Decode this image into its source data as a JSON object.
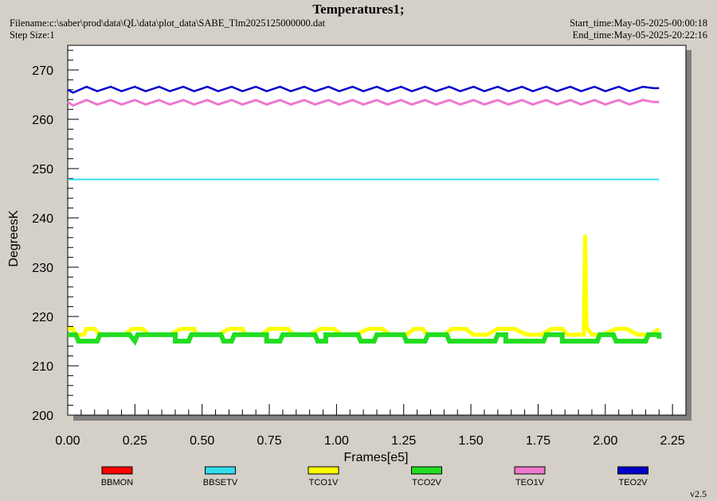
{
  "header": {
    "title": "Temperatures1;",
    "filename": "Filename:c:\\saber\\prod\\data\\QL\\data\\plot_data\\SABE_Tlm2025125000000.dat",
    "step_size": "Step Size:1",
    "start_time": "Start_time:May-05-2025-00:00:18",
    "end_time": "End_time:May-05-2025-20:22:16"
  },
  "version": "v2.5",
  "chart_data": {
    "type": "line",
    "title": "Temperatures1;",
    "xlabel": "Frames[e5]",
    "ylabel": "DegreesK",
    "xlim": [
      0,
      2.3
    ],
    "ylim": [
      200,
      275
    ],
    "x_ticks": [
      "0.00",
      "0.25",
      "0.50",
      "0.75",
      "1.00",
      "1.25",
      "1.50",
      "1.75",
      "2.00",
      "2.25"
    ],
    "y_ticks": [
      "200",
      "210",
      "220",
      "230",
      "240",
      "250",
      "260",
      "270"
    ],
    "grid": false,
    "legend_position": "bottom",
    "series": [
      {
        "name": "BBMON",
        "color": "#ff0000",
        "x": [],
        "y": []
      },
      {
        "name": "BBSETV",
        "color": "#33ddee",
        "x": [
          0,
          0.25,
          0.5,
          0.75,
          1.0,
          1.25,
          1.5,
          1.75,
          2.0,
          2.2
        ],
        "y": [
          247.8,
          247.8,
          247.8,
          247.8,
          247.8,
          247.8,
          247.8,
          247.8,
          247.8,
          247.8
        ]
      },
      {
        "name": "TCO1V",
        "color": "#ffff00",
        "x": [
          0,
          0.02,
          0.03,
          0.06,
          0.07,
          0.1,
          0.12,
          0.21,
          0.24,
          0.28,
          0.3,
          0.38,
          0.42,
          0.47,
          0.48,
          0.56,
          0.6,
          0.65,
          0.66,
          0.72,
          0.75,
          0.82,
          0.84,
          0.9,
          0.94,
          0.99,
          1.02,
          1.07,
          1.12,
          1.17,
          1.2,
          1.26,
          1.29,
          1.32,
          1.34,
          1.4,
          1.43,
          1.48,
          1.51,
          1.56,
          1.6,
          1.66,
          1.71,
          1.76,
          1.8,
          1.84,
          1.86,
          1.92,
          1.925,
          1.93,
          1.935,
          1.95,
          1.99,
          2.04,
          2.08,
          2.12,
          2.17,
          2.2
        ],
        "y": [
          217.5,
          217.5,
          216.3,
          216.3,
          217.5,
          217.5,
          216.3,
          216.3,
          217.5,
          217.5,
          216.3,
          216.3,
          217.5,
          217.5,
          216.3,
          216.3,
          217.5,
          217.5,
          216.3,
          216.3,
          217.5,
          217.5,
          216.3,
          216.3,
          217.5,
          217.5,
          216.3,
          216.3,
          217.5,
          217.5,
          216.3,
          216.3,
          217.5,
          217.5,
          216.3,
          216.3,
          217.5,
          217.5,
          216.3,
          216.3,
          217.5,
          217.5,
          216.3,
          216.3,
          217.5,
          217.5,
          216.3,
          216.3,
          236.5,
          218.0,
          217.5,
          216.3,
          216.3,
          217.5,
          217.5,
          216.3,
          216.3,
          217.5
        ]
      },
      {
        "name": "TCO2V",
        "color": "#22dd22",
        "x": [
          0,
          0.03,
          0.04,
          0.11,
          0.12,
          0.23,
          0.25,
          0.26,
          0.4,
          0.4,
          0.45,
          0.46,
          0.57,
          0.58,
          0.61,
          0.62,
          0.74,
          0.74,
          0.79,
          0.8,
          0.92,
          0.93,
          0.96,
          0.96,
          1.08,
          1.09,
          1.14,
          1.15,
          1.25,
          1.26,
          1.33,
          1.34,
          1.41,
          1.42,
          1.59,
          1.6,
          1.63,
          1.63,
          1.77,
          1.78,
          1.84,
          1.84,
          1.97,
          1.98,
          2.03,
          2.04,
          2.15,
          2.16,
          2.2,
          2.2
        ],
        "y": [
          216.3,
          216.3,
          215.0,
          215.0,
          216.3,
          216.3,
          215.0,
          216.3,
          216.3,
          215.0,
          215.0,
          216.3,
          216.3,
          215.0,
          215.0,
          216.3,
          216.3,
          215.0,
          215.0,
          216.3,
          216.3,
          215.0,
          215.0,
          216.3,
          216.3,
          215.0,
          215.0,
          216.3,
          216.3,
          215.0,
          215.0,
          216.3,
          216.3,
          215.0,
          215.0,
          216.3,
          216.3,
          215.0,
          215.0,
          216.3,
          216.3,
          215.0,
          215.0,
          216.3,
          216.3,
          215.0,
          215.0,
          216.3,
          216.3,
          215.5
        ]
      },
      {
        "name": "TEO1V",
        "color": "#ee77cc",
        "x": [
          0,
          0.02,
          0.07,
          0.11,
          0.16,
          0.2,
          0.25,
          0.29,
          0.34,
          0.38,
          0.43,
          0.47,
          0.52,
          0.56,
          0.61,
          0.65,
          0.7,
          0.74,
          0.79,
          0.83,
          0.88,
          0.92,
          0.97,
          1.01,
          1.06,
          1.1,
          1.15,
          1.19,
          1.24,
          1.28,
          1.33,
          1.37,
          1.42,
          1.46,
          1.51,
          1.55,
          1.6,
          1.64,
          1.69,
          1.73,
          1.78,
          1.82,
          1.87,
          1.91,
          1.96,
          2.0,
          2.05,
          2.09,
          2.14,
          2.18,
          2.2
        ],
        "y": [
          263.5,
          262.8,
          263.9,
          263.0,
          263.9,
          263.0,
          263.9,
          263.0,
          263.9,
          263.0,
          263.9,
          263.0,
          263.9,
          263.0,
          263.9,
          263.0,
          263.9,
          263.0,
          263.9,
          263.0,
          263.9,
          263.0,
          263.9,
          263.0,
          263.9,
          263.0,
          263.9,
          263.0,
          263.9,
          263.0,
          263.9,
          263.0,
          263.9,
          263.0,
          263.9,
          263.0,
          263.9,
          263.0,
          263.9,
          263.0,
          263.9,
          263.0,
          263.9,
          263.0,
          263.9,
          263.0,
          263.9,
          263.0,
          263.9,
          263.5,
          263.5
        ]
      },
      {
        "name": "TEO2V",
        "color": "#0000cc",
        "x": [
          0,
          0.02,
          0.07,
          0.11,
          0.16,
          0.2,
          0.25,
          0.29,
          0.34,
          0.38,
          0.43,
          0.47,
          0.52,
          0.56,
          0.61,
          0.65,
          0.7,
          0.74,
          0.79,
          0.83,
          0.88,
          0.92,
          0.97,
          1.01,
          1.06,
          1.1,
          1.15,
          1.19,
          1.24,
          1.28,
          1.33,
          1.37,
          1.42,
          1.46,
          1.51,
          1.55,
          1.6,
          1.64,
          1.69,
          1.73,
          1.78,
          1.82,
          1.87,
          1.91,
          1.96,
          2.0,
          2.05,
          2.09,
          2.14,
          2.18,
          2.2
        ],
        "y": [
          266.0,
          265.4,
          266.6,
          265.7,
          266.6,
          265.7,
          266.6,
          265.7,
          266.6,
          265.7,
          266.6,
          265.7,
          266.6,
          265.7,
          266.6,
          265.7,
          266.6,
          265.7,
          266.6,
          265.7,
          266.6,
          265.7,
          266.6,
          265.7,
          266.6,
          265.7,
          266.6,
          265.7,
          266.6,
          265.7,
          266.6,
          265.7,
          266.6,
          265.7,
          266.6,
          265.7,
          266.6,
          265.7,
          266.6,
          265.7,
          266.6,
          265.7,
          266.6,
          265.7,
          266.6,
          265.7,
          266.6,
          265.7,
          266.6,
          266.3,
          266.3
        ]
      }
    ]
  }
}
